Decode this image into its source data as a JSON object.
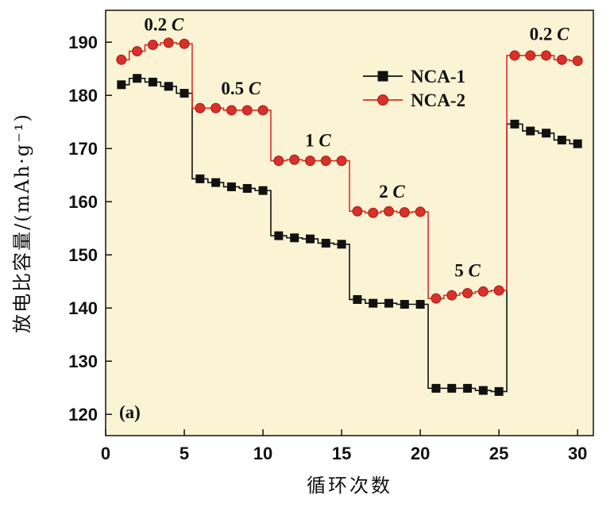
{
  "chart_data": {
    "type": "line",
    "xlabel": "循环次数",
    "ylabel": "放电比容量/(mAh·g⁻¹)",
    "xlim": [
      0,
      31
    ],
    "ylim": [
      116,
      196
    ],
    "xticks": [
      0,
      5,
      10,
      15,
      20,
      25,
      30
    ],
    "yticks": [
      120,
      130,
      140,
      150,
      160,
      170,
      180,
      190
    ],
    "grid": false,
    "legend_position": "top-right",
    "background": "#fbf4d4",
    "panel_label": "(a)",
    "x": [
      1,
      2,
      3,
      4,
      5,
      6,
      7,
      8,
      9,
      10,
      11,
      12,
      13,
      14,
      15,
      16,
      17,
      18,
      19,
      20,
      21,
      22,
      23,
      24,
      25,
      26,
      27,
      28,
      29,
      30
    ],
    "series": [
      {
        "name": "NCA-1",
        "color": "#111111",
        "marker": "square",
        "values": [
          182.0,
          183.2,
          182.5,
          181.7,
          180.4,
          164.3,
          163.6,
          162.8,
          162.5,
          162.1,
          153.6,
          153.2,
          153.0,
          152.2,
          152.0,
          141.6,
          140.9,
          140.9,
          140.7,
          140.7,
          124.9,
          124.9,
          124.9,
          124.5,
          124.3,
          174.6,
          173.3,
          172.9,
          171.6,
          170.9
        ]
      },
      {
        "name": "NCA-2",
        "color": "#d9302a",
        "marker": "circle",
        "values": [
          186.7,
          188.3,
          189.5,
          189.9,
          189.7,
          177.6,
          177.6,
          177.2,
          177.2,
          177.2,
          167.7,
          167.9,
          167.7,
          167.7,
          167.7,
          158.2,
          157.9,
          158.2,
          158.0,
          158.1,
          141.8,
          142.4,
          142.8,
          143.1,
          143.3,
          187.5,
          187.5,
          187.5,
          186.7,
          186.5
        ]
      }
    ],
    "annotations": [
      {
        "text": "0.2 C",
        "x": 3.7,
        "y": 192.2
      },
      {
        "text": "0.5 C",
        "x": 8.6,
        "y": 180.2
      },
      {
        "text": "1 C",
        "x": 13.5,
        "y": 170.4
      },
      {
        "text": "2 C",
        "x": 18.2,
        "y": 160.8
      },
      {
        "text": "5 C",
        "x": 23.0,
        "y": 145.9
      },
      {
        "text": "0.2 C",
        "x": 28.2,
        "y": 190.4
      }
    ]
  }
}
